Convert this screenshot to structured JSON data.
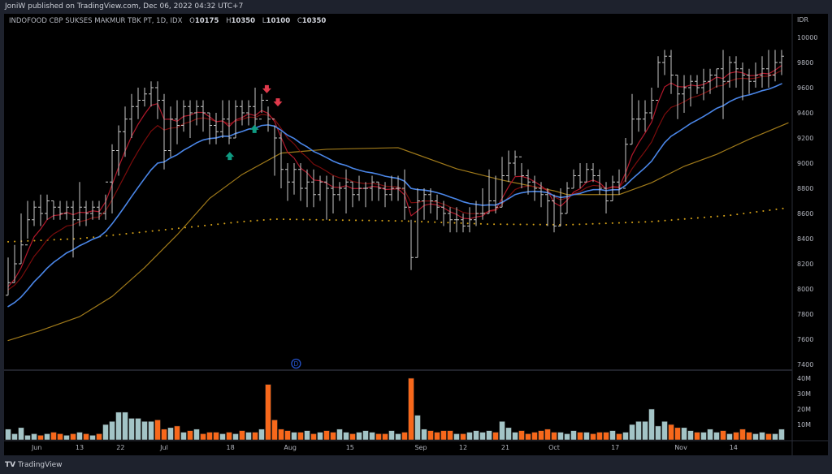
{
  "header": {
    "published": "JoniW published on TradingView.com, Dec 06, 2022 04:32 UTC+7"
  },
  "legend": {
    "symbol": "INDOFOOD CBP SUKSES MAKMUR TBK PT, 1D, IDX",
    "o_label": "O",
    "o": "10175",
    "h_label": "H",
    "h": "10350",
    "l_label": "L",
    "l": "10100",
    "c_label": "C",
    "c": "10350"
  },
  "footer": {
    "logo": "TV",
    "brand": "TradingView"
  },
  "colors": {
    "bar": "#c8c8c8",
    "ema_fast": "#b2182b",
    "ema_mid": "#7a0c0c",
    "ema20": "#4a86e8",
    "ma50": "#a07a1a",
    "ma200": "#d4a017",
    "vol_up": "#a3c4c6",
    "vol_down": "#f7681b",
    "arrow_down": "#e0394b",
    "arrow_up": "#0f9b82",
    "dividend": "#2451c7"
  },
  "chart_data": {
    "type": "ohlc",
    "currency": "IDR",
    "price_ticks": [
      "10000",
      "9800",
      "9600",
      "9400",
      "9200",
      "9000",
      "8800",
      "8600",
      "8400",
      "8200",
      "8000",
      "7800",
      "7600",
      "7400"
    ],
    "ylim": [
      7400,
      10000
    ],
    "volume_ticks": [
      "40M",
      "30M",
      "20M",
      "10M"
    ],
    "x_labels": [
      {
        "bar": 4.4,
        "label": "Jun"
      },
      {
        "bar": 11,
        "label": "13"
      },
      {
        "bar": 17.3,
        "label": "22"
      },
      {
        "bar": 24,
        "label": "Jul"
      },
      {
        "bar": 34.2,
        "label": "18"
      },
      {
        "bar": 43.4,
        "label": "Aug"
      },
      {
        "bar": 52.6,
        "label": "15"
      },
      {
        "bar": 63.5,
        "label": "Sep"
      },
      {
        "bar": 70,
        "label": "12"
      },
      {
        "bar": 76.5,
        "label": "21"
      },
      {
        "bar": 84,
        "label": "Oct"
      },
      {
        "bar": 93.4,
        "label": "17"
      },
      {
        "bar": 103.5,
        "label": "Nov"
      },
      {
        "bar": 111.6,
        "label": "14"
      }
    ],
    "close": [
      8050,
      8200,
      8350,
      8550,
      8650,
      8600,
      8700,
      8650,
      8600,
      8650,
      8550,
      8650,
      8600,
      8650,
      8600,
      8850,
      9100,
      9250,
      9350,
      9450,
      9500,
      9550,
      9600,
      9500,
      9100,
      9350,
      9300,
      9450,
      9400,
      9450,
      9400,
      9300,
      9250,
      9350,
      9200,
      9450,
      9400,
      9450,
      9350,
      9500,
      9350,
      9200,
      8950,
      8850,
      8950,
      8800,
      8850,
      8750,
      8850,
      8800,
      8750,
      8800,
      8850,
      8750,
      8800,
      8800,
      8850,
      8800,
      8750,
      8800,
      8800,
      8650,
      8250,
      8700,
      8750,
      8700,
      8650,
      8600,
      8550,
      8550,
      8500,
      8550,
      8600,
      8600,
      8700,
      8650,
      8900,
      9000,
      9050,
      8900,
      8850,
      8800,
      8750,
      8700,
      8500,
      8600,
      8800,
      8900,
      8850,
      8950,
      8900,
      8800,
      8700,
      8850,
      8800,
      9150,
      9350,
      9350,
      9400,
      9500,
      9800,
      9850,
      9700,
      9550,
      9600,
      9650,
      9600,
      9650,
      9700,
      9750,
      9650,
      9800,
      9750,
      9700,
      9650,
      9700,
      9750,
      9700,
      9800,
      9850
    ],
    "high": [
      8250,
      8350,
      8600,
      8700,
      8700,
      8750,
      8750,
      8700,
      8700,
      8700,
      8700,
      8850,
      8700,
      8700,
      8700,
      8750,
      9150,
      9300,
      9450,
      9550,
      9600,
      9600,
      9650,
      9650,
      9550,
      9450,
      9500,
      9500,
      9500,
      9500,
      9500,
      9400,
      9400,
      9500,
      9500,
      9500,
      9500,
      9500,
      9600,
      9550,
      9450,
      9300,
      9250,
      9000,
      9000,
      9000,
      8950,
      8950,
      8900,
      8900,
      8900,
      8850,
      8950,
      8850,
      8900,
      8850,
      8900,
      8850,
      8850,
      8900,
      8900,
      8950,
      8550,
      8800,
      8800,
      8800,
      8750,
      8700,
      8650,
      8650,
      8600,
      8650,
      8700,
      8800,
      8950,
      8900,
      9050,
      9100,
      9100,
      9000,
      8950,
      8900,
      8850,
      8800,
      8750,
      8800,
      8850,
      8950,
      9000,
      9000,
      9000,
      8950,
      8850,
      8900,
      8950,
      9200,
      9550,
      9500,
      9500,
      9600,
      9850,
      9900,
      9900,
      9700,
      9700,
      9700,
      9700,
      9750,
      9750,
      9750,
      9900,
      9850,
      9850,
      9800,
      9750,
      9800,
      9850,
      9900,
      9900,
      9900
    ],
    "low": [
      7950,
      8050,
      8200,
      8400,
      8500,
      8500,
      8550,
      8550,
      8550,
      8550,
      8250,
      8500,
      8500,
      8550,
      8550,
      8550,
      8600,
      8900,
      9050,
      9200,
      9350,
      9450,
      9450,
      9350,
      8950,
      9050,
      9150,
      9250,
      9200,
      9300,
      9250,
      9150,
      9150,
      9200,
      9150,
      9200,
      9300,
      9300,
      9250,
      9400,
      9250,
      8900,
      8800,
      8700,
      8750,
      8700,
      8650,
      8650,
      8700,
      8550,
      8600,
      8700,
      8600,
      8650,
      8700,
      8650,
      8700,
      8700,
      8650,
      8700,
      8700,
      8550,
      8150,
      8250,
      8550,
      8600,
      8550,
      8500,
      8450,
      8450,
      8450,
      8450,
      8500,
      8550,
      8600,
      8600,
      8650,
      8850,
      8900,
      8800,
      8750,
      8700,
      8650,
      8500,
      8450,
      8500,
      8600,
      8800,
      8800,
      8850,
      8850,
      8750,
      8600,
      8700,
      8750,
      8850,
      9150,
      9250,
      9250,
      9350,
      9600,
      9700,
      9550,
      9350,
      9400,
      9450,
      9550,
      9500,
      9550,
      9600,
      9350,
      9600,
      9600,
      9500,
      9550,
      9600,
      9600,
      9600,
      9650,
      9700
    ],
    "volume_m": [
      7,
      4,
      8,
      3,
      4,
      3,
      4,
      5,
      4,
      3,
      4,
      5,
      4,
      3,
      4,
      10,
      12,
      18,
      18,
      14,
      14,
      12,
      12,
      13,
      7,
      8,
      9,
      5,
      6,
      7,
      4,
      5,
      5,
      4,
      5,
      4,
      6,
      5,
      5,
      7,
      36,
      13,
      7,
      6,
      5,
      5,
      6,
      4,
      5,
      6,
      5,
      7,
      5,
      4,
      5,
      6,
      5,
      4,
      4,
      6,
      4,
      5,
      40,
      16,
      7,
      6,
      5,
      6,
      6,
      4,
      4,
      5,
      6,
      5,
      6,
      5,
      12,
      8,
      5,
      6,
      4,
      5,
      6,
      7,
      5,
      5,
      4,
      6,
      5,
      5,
      4,
      5,
      5,
      6,
      4,
      5,
      10,
      12,
      12,
      20,
      9,
      12,
      10,
      8,
      8,
      6,
      5,
      5,
      7,
      5,
      6,
      4,
      5,
      7,
      5,
      4,
      5,
      4,
      4,
      7
    ],
    "ema_seeds": {
      "ema_fast": 8000,
      "ema_mid": 7980,
      "ema20": 7840
    },
    "ma50": [
      [
        0,
        7590
      ],
      [
        5,
        7670
      ],
      [
        11,
        7780
      ],
      [
        16,
        7940
      ],
      [
        21,
        8170
      ],
      [
        26,
        8430
      ],
      [
        31,
        8720
      ],
      [
        36,
        8910
      ],
      [
        42,
        9080
      ],
      [
        49,
        9110
      ],
      [
        60,
        9123
      ],
      [
        69,
        8955
      ],
      [
        76,
        8865
      ],
      [
        84,
        8780
      ],
      [
        86,
        8750
      ],
      [
        94,
        8750
      ],
      [
        99,
        8845
      ],
      [
        104,
        8975
      ],
      [
        109,
        9070
      ],
      [
        114,
        9190
      ],
      [
        120,
        9320
      ]
    ],
    "ma200": [
      [
        0,
        8375
      ],
      [
        11,
        8400
      ],
      [
        24,
        8470
      ],
      [
        36,
        8535
      ],
      [
        41,
        8555
      ],
      [
        61,
        8540
      ],
      [
        74,
        8515
      ],
      [
        86,
        8510
      ],
      [
        99,
        8535
      ],
      [
        111,
        8585
      ],
      [
        120,
        8645
      ]
    ],
    "markers": [
      {
        "type": "arrow-down",
        "bar": 39.8,
        "price": 9575
      },
      {
        "type": "arrow-down",
        "bar": 41.5,
        "price": 9470
      },
      {
        "type": "arrow-up",
        "bar": 34.1,
        "price": 9070
      },
      {
        "type": "arrow-up",
        "bar": 37.9,
        "price": 9285
      },
      {
        "type": "dividend",
        "bar": 44.3,
        "label": "D"
      }
    ]
  }
}
